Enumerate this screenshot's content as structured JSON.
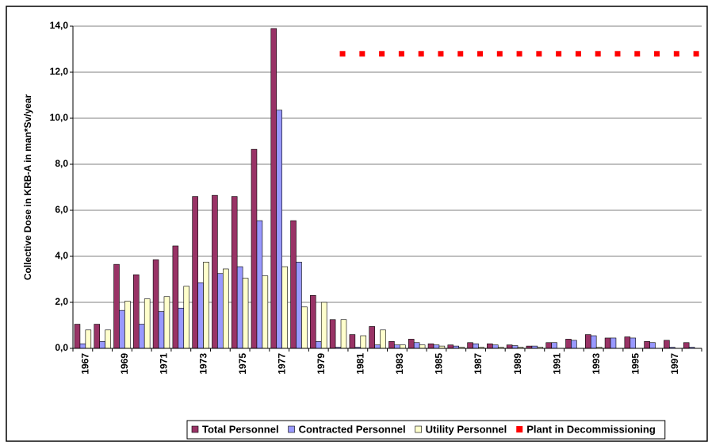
{
  "chart_data": {
    "type": "bar",
    "y_label": "Collective Dose in KRB-A in man*Sv/year",
    "categories": [
      "1967",
      null,
      "1969",
      null,
      "1971",
      null,
      "1973",
      null,
      "1975",
      null,
      "1977",
      null,
      "1979",
      null,
      "1981",
      null,
      "1983",
      null,
      "1985",
      null,
      "1987",
      null,
      "1989",
      null,
      "1991",
      null,
      "1993",
      null,
      "1995",
      null,
      "1997",
      null
    ],
    "series": [
      {
        "name": "Total Personnel",
        "color": "#993366",
        "values": [
          1.05,
          1.05,
          3.65,
          3.2,
          3.85,
          4.45,
          6.6,
          6.65,
          6.6,
          8.65,
          13.9,
          5.55,
          2.3,
          1.25,
          0.6,
          0.95,
          0.3,
          0.4,
          0.2,
          0.15,
          0.25,
          0.2,
          0.15,
          0.1,
          0.25,
          0.4,
          0.6,
          0.45,
          0.5,
          0.3,
          0.35,
          0.25
        ]
      },
      {
        "name": "Contracted Personnel",
        "color": "#9999ff",
        "values": [
          0.2,
          0.3,
          1.65,
          1.05,
          1.6,
          1.75,
          2.85,
          3.25,
          3.55,
          5.55,
          10.35,
          3.75,
          0.3,
          0.05,
          0.05,
          0.15,
          0.15,
          0.25,
          0.15,
          0.1,
          0.2,
          0.15,
          0.12,
          0.1,
          0.25,
          0.35,
          0.55,
          0.45,
          0.45,
          0.25,
          0.05,
          0.05
        ]
      },
      {
        "name": "Utility Personnel",
        "color": "#ffffcc",
        "values": [
          0.8,
          0.8,
          2.05,
          2.15,
          2.25,
          2.7,
          3.75,
          3.45,
          3.05,
          3.15,
          3.55,
          1.8,
          2.0,
          1.25,
          0.55,
          0.8,
          0.15,
          0.15,
          0.1,
          0.05,
          0.05,
          0.05,
          0.05,
          0.05,
          0.0,
          0.0,
          0.05,
          0.0,
          0.0,
          0.0,
          0.0,
          0.0
        ]
      },
      {
        "name": "Plant in Decommissioning",
        "color": "#ff0000",
        "type": "line",
        "values": [
          null,
          null,
          null,
          null,
          null,
          null,
          null,
          null,
          null,
          null,
          null,
          null,
          null,
          12.8,
          12.8,
          12.8,
          12.8,
          12.8,
          12.8,
          12.8,
          12.8,
          12.8,
          12.8,
          12.8,
          12.8,
          12.8,
          12.8,
          12.8,
          12.8,
          12.8,
          12.8,
          12.8
        ]
      }
    ],
    "ylim": [
      0,
      14
    ],
    "yticks": [
      {
        "value": 0,
        "label": "0,0"
      },
      {
        "value": 2,
        "label": "2,0"
      },
      {
        "value": 4,
        "label": "4,0"
      },
      {
        "value": 6,
        "label": "6,0"
      },
      {
        "value": 8,
        "label": "8,0"
      },
      {
        "value": 10,
        "label": "10,0"
      },
      {
        "value": 12,
        "label": "12,0"
      },
      {
        "value": 14,
        "label": "14,0"
      }
    ],
    "grid": true
  }
}
